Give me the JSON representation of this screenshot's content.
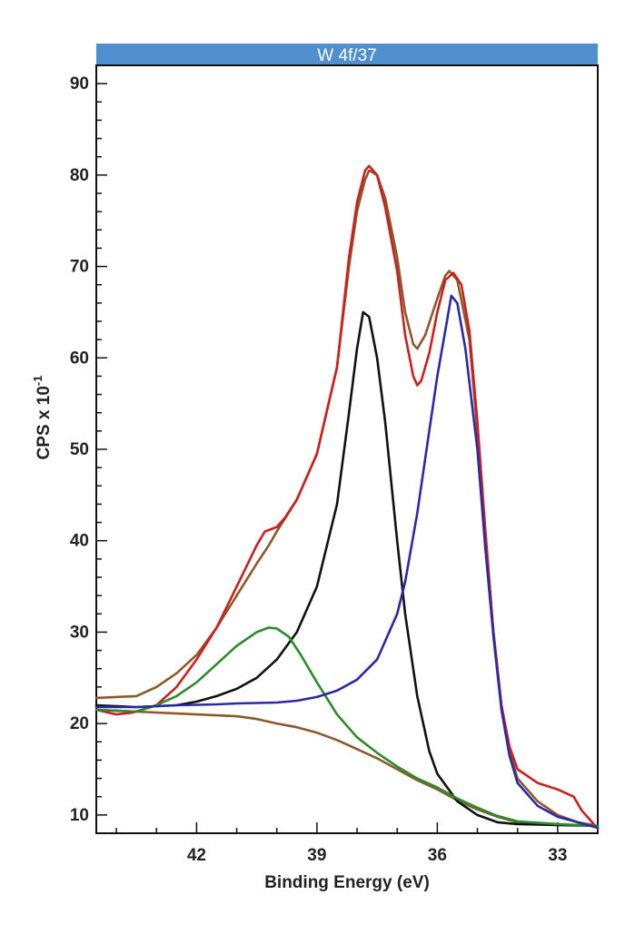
{
  "chart_data": {
    "type": "line",
    "title": "W 4f/37",
    "xlabel": "Binding Energy (eV)",
    "ylabel": "CPS x 10",
    "ylabel_exponent": "-1",
    "xlim": [
      44.5,
      32.0
    ],
    "x_reversed": true,
    "ylim": [
      8,
      92
    ],
    "x_ticks": [
      42,
      39,
      36,
      33
    ],
    "y_ticks": [
      10,
      20,
      30,
      40,
      50,
      60,
      70,
      80,
      90
    ],
    "grid": false,
    "series": [
      {
        "color": "#8b5a2b",
        "points": [
          [
            44.5,
            21.5
          ],
          [
            43.5,
            21.3
          ],
          [
            42.0,
            21.0
          ],
          [
            41.0,
            20.8
          ],
          [
            40.5,
            20.5
          ],
          [
            40.0,
            20.0
          ],
          [
            39.5,
            19.6
          ],
          [
            39.0,
            19.0
          ],
          [
            38.5,
            18.2
          ],
          [
            38.0,
            17.2
          ],
          [
            37.5,
            16.2
          ],
          [
            37.0,
            15.0
          ],
          [
            36.5,
            13.8
          ],
          [
            36.0,
            12.8
          ],
          [
            35.5,
            11.6
          ],
          [
            35.0,
            10.6
          ],
          [
            34.5,
            9.8
          ],
          [
            34.0,
            9.2
          ],
          [
            33.5,
            9.0
          ],
          [
            33.0,
            8.9
          ],
          [
            32.5,
            8.9
          ],
          [
            32.0,
            8.8
          ]
        ]
      },
      {
        "color": "#8b5a2b",
        "points": [
          [
            44.5,
            22.8
          ],
          [
            43.5,
            23.0
          ],
          [
            43.0,
            24.0
          ],
          [
            42.5,
            25.5
          ],
          [
            42.0,
            27.5
          ],
          [
            41.5,
            30.5
          ],
          [
            41.0,
            34.0
          ],
          [
            40.5,
            37.5
          ],
          [
            40.2,
            39.5
          ],
          [
            40.0,
            41.0
          ],
          [
            39.5,
            44.5
          ],
          [
            39.0,
            49.5
          ],
          [
            38.5,
            59.0
          ],
          [
            38.2,
            70.0
          ],
          [
            38.0,
            76.0
          ],
          [
            37.8,
            79.5
          ],
          [
            37.7,
            80.5
          ],
          [
            37.5,
            80.0
          ],
          [
            37.3,
            77.5
          ],
          [
            37.0,
            71.0
          ],
          [
            36.8,
            65.0
          ],
          [
            36.6,
            61.5
          ],
          [
            36.5,
            61.0
          ],
          [
            36.3,
            62.5
          ],
          [
            36.0,
            66.5
          ],
          [
            35.8,
            69.0
          ],
          [
            35.7,
            69.5
          ],
          [
            35.5,
            68.5
          ],
          [
            35.2,
            62.0
          ],
          [
            35.0,
            52.0
          ],
          [
            34.8,
            40.0
          ],
          [
            34.6,
            30.0
          ],
          [
            34.4,
            22.0
          ],
          [
            34.2,
            17.0
          ],
          [
            34.0,
            14.0
          ],
          [
            33.5,
            11.5
          ],
          [
            33.0,
            10.0
          ],
          [
            32.5,
            9.2
          ],
          [
            32.0,
            8.8
          ]
        ]
      },
      {
        "color": "#cc1f1f",
        "points": [
          [
            44.5,
            21.5
          ],
          [
            44.0,
            21.0
          ],
          [
            43.6,
            21.2
          ],
          [
            43.0,
            22.0
          ],
          [
            42.5,
            24.0
          ],
          [
            42.0,
            27.0
          ],
          [
            41.5,
            30.5
          ],
          [
            41.0,
            35.0
          ],
          [
            40.5,
            39.5
          ],
          [
            40.3,
            41.0
          ],
          [
            40.0,
            41.5
          ],
          [
            39.8,
            42.5
          ],
          [
            39.5,
            44.5
          ],
          [
            39.0,
            49.5
          ],
          [
            38.5,
            59.0
          ],
          [
            38.2,
            71.0
          ],
          [
            38.0,
            77.0
          ],
          [
            37.8,
            80.5
          ],
          [
            37.7,
            81.0
          ],
          [
            37.5,
            80.0
          ],
          [
            37.3,
            76.5
          ],
          [
            37.0,
            69.5
          ],
          [
            36.8,
            62.5
          ],
          [
            36.6,
            58.0
          ],
          [
            36.5,
            57.0
          ],
          [
            36.4,
            57.5
          ],
          [
            36.2,
            60.5
          ],
          [
            36.0,
            65.0
          ],
          [
            35.8,
            68.5
          ],
          [
            35.6,
            69.3
          ],
          [
            35.4,
            68.0
          ],
          [
            35.2,
            63.0
          ],
          [
            35.0,
            53.0
          ],
          [
            34.8,
            41.0
          ],
          [
            34.6,
            30.0
          ],
          [
            34.4,
            22.0
          ],
          [
            34.2,
            17.5
          ],
          [
            34.0,
            15.0
          ],
          [
            33.5,
            13.5
          ],
          [
            33.0,
            12.8
          ],
          [
            32.6,
            12.0
          ],
          [
            32.4,
            10.5
          ],
          [
            32.2,
            9.5
          ],
          [
            32.0,
            8.5
          ]
        ]
      },
      {
        "color": "#111111",
        "points": [
          [
            44.5,
            22.0
          ],
          [
            43.5,
            21.8
          ],
          [
            42.5,
            22.0
          ],
          [
            42.0,
            22.4
          ],
          [
            41.5,
            23.0
          ],
          [
            41.0,
            23.8
          ],
          [
            40.5,
            25.0
          ],
          [
            40.0,
            27.0
          ],
          [
            39.5,
            30.0
          ],
          [
            39.0,
            35.0
          ],
          [
            38.5,
            44.0
          ],
          [
            38.2,
            54.0
          ],
          [
            38.0,
            61.0
          ],
          [
            37.85,
            65.0
          ],
          [
            37.7,
            64.5
          ],
          [
            37.5,
            60.0
          ],
          [
            37.3,
            53.0
          ],
          [
            37.0,
            40.0
          ],
          [
            36.8,
            32.0
          ],
          [
            36.5,
            23.0
          ],
          [
            36.2,
            17.0
          ],
          [
            36.0,
            14.5
          ],
          [
            35.5,
            11.5
          ],
          [
            35.0,
            10.0
          ],
          [
            34.5,
            9.2
          ],
          [
            34.0,
            9.0
          ],
          [
            33.0,
            8.9
          ],
          [
            32.0,
            8.8
          ]
        ]
      },
      {
        "color": "#2b8c2b",
        "points": [
          [
            44.5,
            21.5
          ],
          [
            43.5,
            21.3
          ],
          [
            43.0,
            22.0
          ],
          [
            42.5,
            23.0
          ],
          [
            42.0,
            24.5
          ],
          [
            41.5,
            26.5
          ],
          [
            41.0,
            28.5
          ],
          [
            40.5,
            30.0
          ],
          [
            40.2,
            30.5
          ],
          [
            40.0,
            30.4
          ],
          [
            39.7,
            29.5
          ],
          [
            39.4,
            27.5
          ],
          [
            39.0,
            24.5
          ],
          [
            38.5,
            21.0
          ],
          [
            38.0,
            18.5
          ],
          [
            37.5,
            16.8
          ],
          [
            37.0,
            15.3
          ],
          [
            36.5,
            14.0
          ],
          [
            36.0,
            13.0
          ],
          [
            35.5,
            11.8
          ],
          [
            35.0,
            10.8
          ],
          [
            34.5,
            9.9
          ],
          [
            34.0,
            9.3
          ],
          [
            33.0,
            9.0
          ],
          [
            32.0,
            8.8
          ]
        ]
      },
      {
        "color": "#2a2aa8",
        "points": [
          [
            44.5,
            21.8
          ],
          [
            43.5,
            21.8
          ],
          [
            42.5,
            22.0
          ],
          [
            41.5,
            22.1
          ],
          [
            41.0,
            22.2
          ],
          [
            40.0,
            22.3
          ],
          [
            39.5,
            22.5
          ],
          [
            39.0,
            22.9
          ],
          [
            38.5,
            23.6
          ],
          [
            38.0,
            24.8
          ],
          [
            37.5,
            27.0
          ],
          [
            37.0,
            32.0
          ],
          [
            36.8,
            35.5
          ],
          [
            36.5,
            43.0
          ],
          [
            36.2,
            52.0
          ],
          [
            36.0,
            58.0
          ],
          [
            35.8,
            63.0
          ],
          [
            35.65,
            66.8
          ],
          [
            35.5,
            66.0
          ],
          [
            35.3,
            61.0
          ],
          [
            35.0,
            50.0
          ],
          [
            34.8,
            39.0
          ],
          [
            34.6,
            29.5
          ],
          [
            34.4,
            21.5
          ],
          [
            34.2,
            16.5
          ],
          [
            34.0,
            13.5
          ],
          [
            33.5,
            11.0
          ],
          [
            33.0,
            9.8
          ],
          [
            32.5,
            9.2
          ],
          [
            32.0,
            8.6
          ]
        ]
      }
    ]
  }
}
